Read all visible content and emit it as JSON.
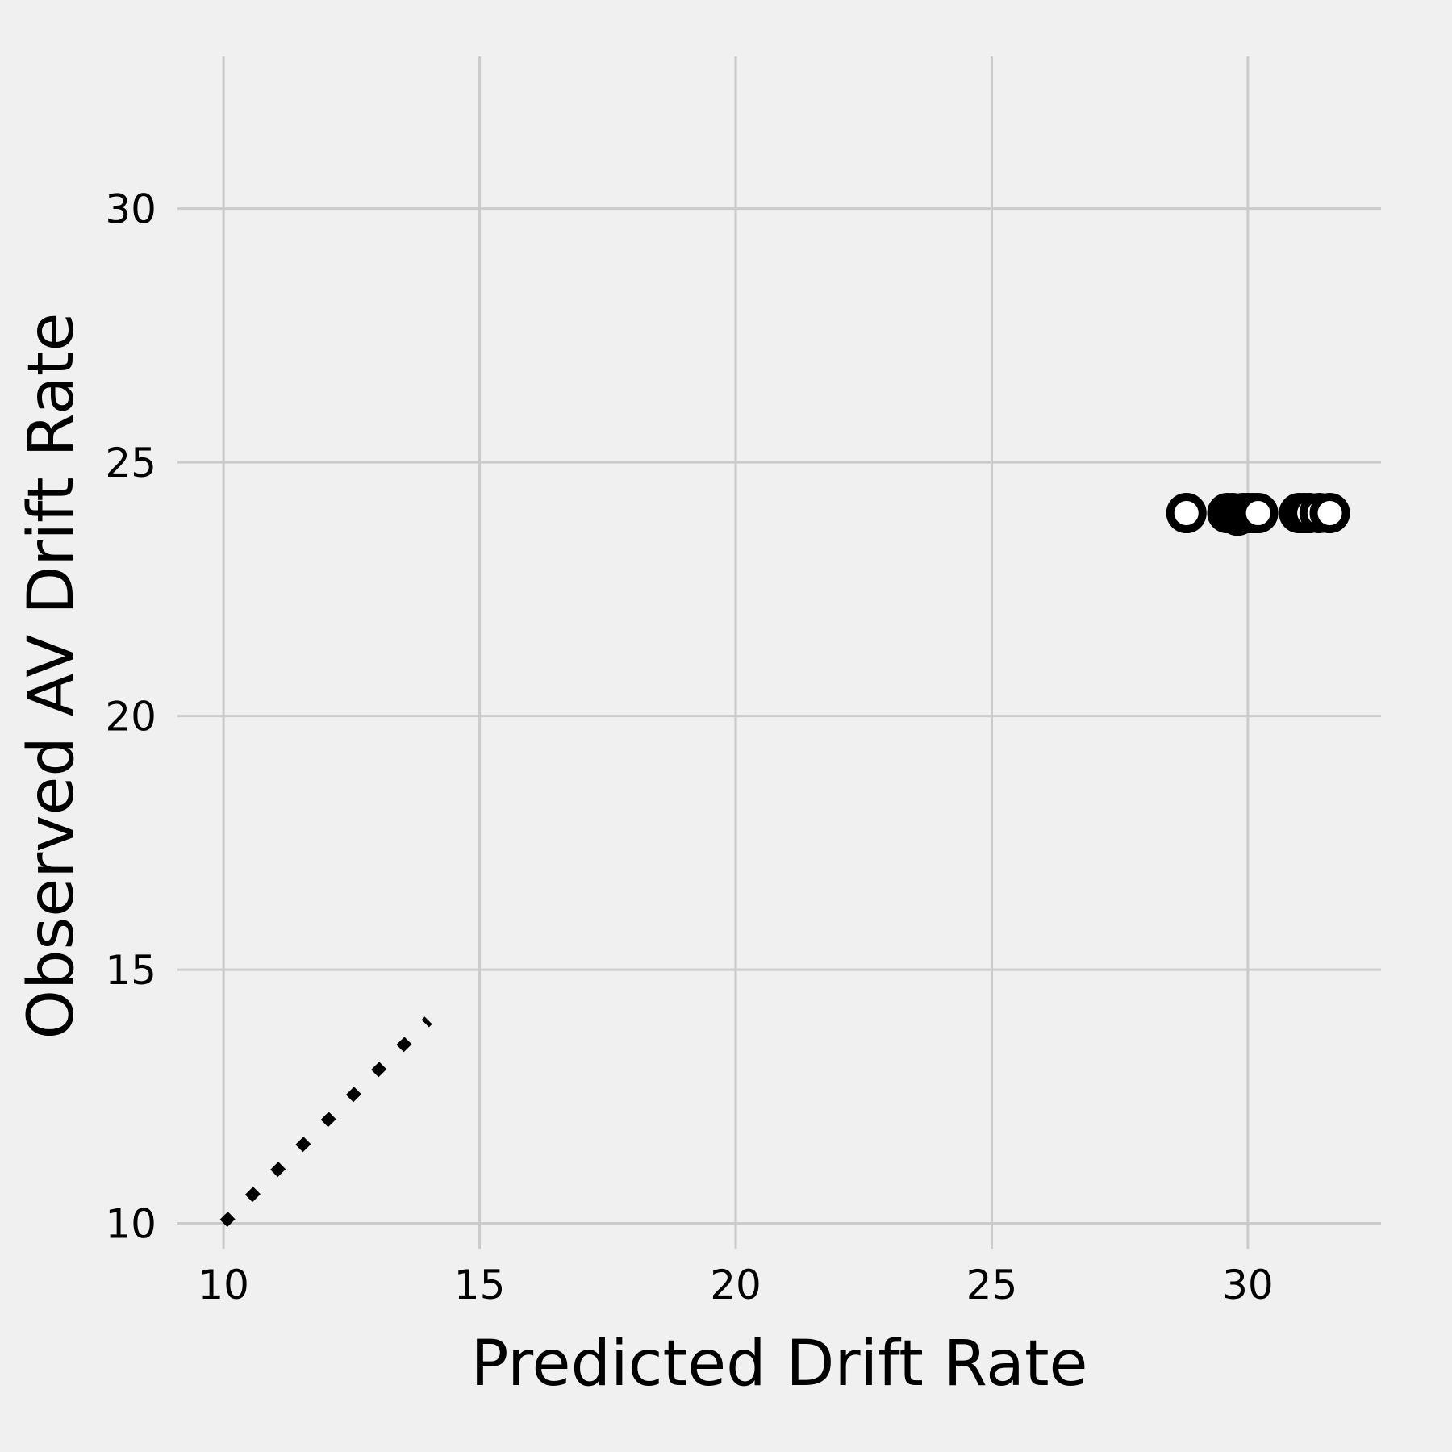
{
  "chart_data": {
    "type": "scatter",
    "title": "",
    "xlabel": "Predicted Drift Rate",
    "ylabel": "Observed AV Drift Rate",
    "xlim": [
      9.1,
      32.6
    ],
    "ylim": [
      9.5,
      33.0
    ],
    "xticks": [
      10,
      15,
      20,
      25,
      30
    ],
    "yticks": [
      10,
      15,
      20,
      25,
      30
    ],
    "grid": true,
    "colors": {
      "background": "#f0f0f0",
      "grid": "#cbcbcb",
      "marker_edge": "#000000",
      "marker_face": "#ffffff",
      "identity_line": "#000000"
    },
    "identity_line": {
      "x": [
        10,
        14
      ],
      "y": [
        10,
        14
      ],
      "style": "dotted"
    },
    "series": [
      {
        "marker": "open-circle",
        "points": [
          {
            "x": 28.8,
            "y": 24.0
          },
          {
            "x": 29.6,
            "y": 24.0
          },
          {
            "x": 29.7,
            "y": 24.0
          },
          {
            "x": 29.8,
            "y": 23.95
          },
          {
            "x": 29.9,
            "y": 24.0
          },
          {
            "x": 30.0,
            "y": 24.0
          },
          {
            "x": 30.1,
            "y": 24.0
          },
          {
            "x": 30.2,
            "y": 24.0
          },
          {
            "x": 31.0,
            "y": 24.0
          },
          {
            "x": 31.1,
            "y": 24.0
          },
          {
            "x": 31.2,
            "y": 24.0
          },
          {
            "x": 31.4,
            "y": 24.0
          },
          {
            "x": 31.6,
            "y": 24.0
          }
        ]
      }
    ]
  }
}
